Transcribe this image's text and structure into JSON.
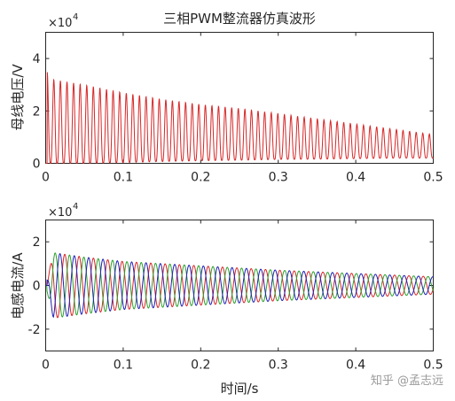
{
  "chart_data": [
    {
      "type": "line",
      "title": "三相PWM整流器仿真波形",
      "xlabel": "",
      "ylabel": "母线电压/V",
      "xlim": [
        0,
        0.5
      ],
      "ylim": [
        0,
        50000
      ],
      "xticks": [
        "0",
        "0.1",
        "0.2",
        "0.3",
        "0.4",
        "0.5"
      ],
      "yticks": [
        "0",
        "2",
        "4"
      ],
      "ytick_values": [
        0,
        20000,
        40000
      ],
      "y_exponent": "×10",
      "y_exponent_power": "4",
      "grid": false,
      "series": [
        {
          "color": "#d62728",
          "description": "oscillating bus voltage: peaks decay from about 35000 V near t=0.002 s to about 11000 V at t=0.5 s, troughs rise from 0 to about 2000 V; oscillation period about 0.0085 s",
          "envelope": {
            "t": [
              0.002,
              0.01,
              0.05,
              0.1,
              0.15,
              0.2,
              0.25,
              0.3,
              0.35,
              0.4,
              0.45,
              0.5
            ],
            "peak": [
              35000,
              32000,
              30000,
              27000,
              24500,
              22500,
              21000,
              19000,
              17000,
              15000,
              13000,
              11000
            ],
            "trough": [
              0,
              0,
              0,
              300,
              700,
              1000,
              1200,
              1500,
              1600,
              1800,
              2000,
              2000
            ]
          },
          "period": 0.0085
        }
      ]
    },
    {
      "type": "line",
      "title": "",
      "xlabel": "时间/s",
      "ylabel": "电感电流/A",
      "xlim": [
        0,
        0.5
      ],
      "ylim": [
        -30000,
        30000
      ],
      "xticks": [
        "0",
        "0.1",
        "0.2",
        "0.3",
        "0.4",
        "0.5"
      ],
      "yticks": [
        "-2",
        "0",
        "2"
      ],
      "ytick_values": [
        -20000,
        0,
        20000
      ],
      "y_exponent": "×10",
      "y_exponent_power": "4",
      "grid": false,
      "series": [
        {
          "color": "#d62728",
          "phase_deg": 0
        },
        {
          "color": "#2ca02c",
          "phase_deg": 120
        },
        {
          "color": "#1f1fb4",
          "phase_deg": 240
        }
      ],
      "description": "three-phase inductor currents, amplitude rising to about 15000 A near t=0.01 s and decaying to about 4000 A at t=0.5 s; period about 0.0185 s",
      "envelope": {
        "t": [
          0.002,
          0.01,
          0.05,
          0.1,
          0.2,
          0.3,
          0.4,
          0.5
        ],
        "amplitude": [
          3000,
          15000,
          13000,
          11000,
          9000,
          7000,
          5500,
          4000
        ]
      },
      "period": 0.0185
    }
  ],
  "watermark": "知乎 @孟志远"
}
